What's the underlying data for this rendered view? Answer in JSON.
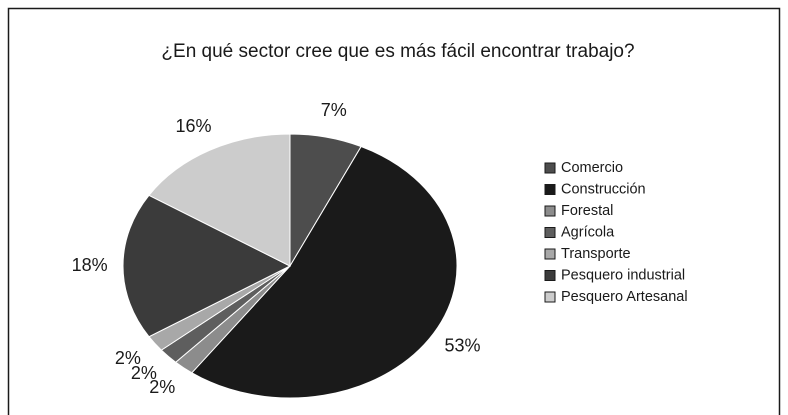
{
  "chart_data": {
    "type": "pie",
    "title": "¿En qué sector cree que es más fácil encontrar trabajo?",
    "categories": [
      "Comercio",
      "Construcción",
      "Forestal",
      "Agrícola",
      "Transporte",
      "Pesquero industrial",
      "Pesquero Artesanal"
    ],
    "values": [
      7,
      53,
      2,
      2,
      2,
      18,
      16
    ],
    "value_labels": [
      "7%",
      "53%",
      "2%",
      "2%",
      "2%",
      "18%",
      "16%"
    ],
    "colors": [
      "#4d4d4d",
      "#1a1a1a",
      "#8c8c8c",
      "#5e5e5e",
      "#a8a8a8",
      "#3b3b3b",
      "#cccccc"
    ],
    "legend": "right"
  }
}
